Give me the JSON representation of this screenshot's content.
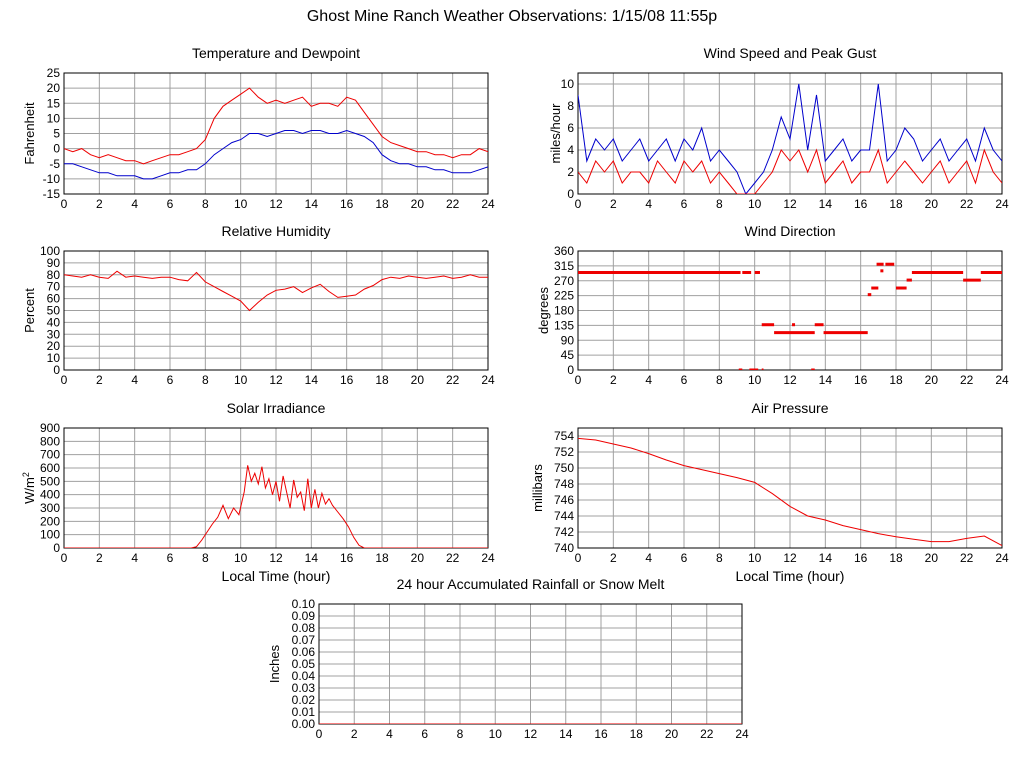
{
  "page": {
    "title": "Ghost Mine Ranch Weather Observations: 1/15/08 11:55p"
  },
  "colors": {
    "red": "#ee0000",
    "blue": "#0000cc",
    "grid": "#a0a0a0",
    "frame": "#000000"
  },
  "chart_data": [
    {
      "id": "temp",
      "type": "line",
      "title": "Temperature and Dewpoint",
      "xlabel": "",
      "ylabel": "Fahrenheit",
      "xlim": [
        0,
        24
      ],
      "ylim": [
        -15,
        25
      ],
      "xticks": [
        0,
        2,
        4,
        6,
        8,
        10,
        12,
        14,
        16,
        18,
        20,
        22,
        24
      ],
      "yticks": [
        -15,
        -10,
        -5,
        0,
        5,
        10,
        15,
        20,
        25
      ],
      "grid": true,
      "series": [
        {
          "color": "red",
          "x": [
            0,
            0.5,
            1,
            1.5,
            2,
            2.5,
            3,
            3.5,
            4,
            4.5,
            5,
            5.5,
            6,
            6.5,
            7,
            7.5,
            8,
            8.5,
            9,
            9.5,
            10,
            10.5,
            11,
            11.5,
            12,
            12.5,
            13,
            13.5,
            14,
            14.5,
            15,
            15.5,
            16,
            16.5,
            17,
            17.5,
            18,
            18.5,
            19,
            19.5,
            20,
            20.5,
            21,
            21.5,
            22,
            22.5,
            23,
            23.5,
            24
          ],
          "values": [
            0,
            -1,
            0,
            -2,
            -3,
            -2,
            -3,
            -4,
            -4,
            -5,
            -4,
            -3,
            -2,
            -2,
            -1,
            0,
            3,
            10,
            14,
            16,
            18,
            20,
            17,
            15,
            16,
            15,
            16,
            17,
            14,
            15,
            15,
            14,
            17,
            16,
            12,
            8,
            4,
            2,
            1,
            0,
            -1,
            -1,
            -2,
            -2,
            -3,
            -2,
            -2,
            0,
            -1
          ]
        },
        {
          "color": "blue",
          "x": [
            0,
            0.5,
            1,
            1.5,
            2,
            2.5,
            3,
            3.5,
            4,
            4.5,
            5,
            5.5,
            6,
            6.5,
            7,
            7.5,
            8,
            8.5,
            9,
            9.5,
            10,
            10.5,
            11,
            11.5,
            12,
            12.5,
            13,
            13.5,
            14,
            14.5,
            15,
            15.5,
            16,
            16.5,
            17,
            17.5,
            18,
            18.5,
            19,
            19.5,
            20,
            20.5,
            21,
            21.5,
            22,
            22.5,
            23,
            23.5,
            24
          ],
          "values": [
            -5,
            -5,
            -6,
            -7,
            -8,
            -8,
            -9,
            -9,
            -9,
            -10,
            -10,
            -9,
            -8,
            -8,
            -7,
            -7,
            -5,
            -2,
            0,
            2,
            3,
            5,
            5,
            4,
            5,
            6,
            6,
            5,
            6,
            6,
            5,
            5,
            6,
            5,
            4,
            2,
            -2,
            -4,
            -5,
            -5,
            -6,
            -6,
            -7,
            -7,
            -8,
            -8,
            -8,
            -7,
            -6
          ]
        }
      ]
    },
    {
      "id": "wind",
      "type": "line",
      "title": "Wind Speed and Peak Gust",
      "xlabel": "",
      "ylabel": "miles/hour",
      "xlim": [
        0,
        24
      ],
      "ylim": [
        0,
        11
      ],
      "xticks": [
        0,
        2,
        4,
        6,
        8,
        10,
        12,
        14,
        16,
        18,
        20,
        22,
        24
      ],
      "yticks": [
        0,
        2,
        4,
        6,
        8,
        10
      ],
      "grid": true,
      "series": [
        {
          "color": "blue",
          "x": [
            0,
            0.5,
            1,
            1.5,
            2,
            2.5,
            3,
            3.5,
            4,
            4.5,
            5,
            5.5,
            6,
            6.5,
            7,
            7.5,
            8,
            8.5,
            9,
            9.5,
            10,
            10.5,
            11,
            11.5,
            12,
            12.5,
            13,
            13.5,
            14,
            14.5,
            15,
            15.5,
            16,
            16.5,
            17,
            17.5,
            18,
            18.5,
            19,
            19.5,
            20,
            20.5,
            21,
            21.5,
            22,
            22.5,
            23,
            23.5,
            24
          ],
          "values": [
            9,
            3,
            5,
            4,
            5,
            3,
            4,
            5,
            3,
            4,
            5,
            3,
            5,
            4,
            6,
            3,
            4,
            3,
            2,
            0,
            1,
            2,
            4,
            7,
            5,
            10,
            4,
            9,
            3,
            4,
            5,
            3,
            4,
            4,
            10,
            3,
            4,
            6,
            5,
            3,
            4,
            5,
            3,
            4,
            5,
            3,
            6,
            4,
            3
          ]
        },
        {
          "color": "red",
          "x": [
            0,
            0.5,
            1,
            1.5,
            2,
            2.5,
            3,
            3.5,
            4,
            4.5,
            5,
            5.5,
            6,
            6.5,
            7,
            7.5,
            8,
            8.5,
            9,
            9.5,
            10,
            10.5,
            11,
            11.5,
            12,
            12.5,
            13,
            13.5,
            14,
            14.5,
            15,
            15.5,
            16,
            16.5,
            17,
            17.5,
            18,
            18.5,
            19,
            19.5,
            20,
            20.5,
            21,
            21.5,
            22,
            22.5,
            23,
            23.5,
            24
          ],
          "values": [
            2,
            1,
            3,
            2,
            3,
            1,
            2,
            2,
            1,
            3,
            2,
            1,
            3,
            2,
            3,
            1,
            2,
            1,
            0,
            0,
            0,
            1,
            2,
            4,
            3,
            4,
            2,
            4,
            1,
            2,
            3,
            1,
            2,
            2,
            4,
            1,
            2,
            3,
            2,
            1,
            2,
            3,
            1,
            2,
            3,
            1,
            4,
            2,
            1
          ]
        }
      ]
    },
    {
      "id": "rh",
      "type": "line",
      "title": "Relative Humidity",
      "xlabel": "",
      "ylabel": "Percent",
      "xlim": [
        0,
        24
      ],
      "ylim": [
        0,
        100
      ],
      "xticks": [
        0,
        2,
        4,
        6,
        8,
        10,
        12,
        14,
        16,
        18,
        20,
        22,
        24
      ],
      "yticks": [
        0,
        10,
        20,
        30,
        40,
        50,
        60,
        70,
        80,
        90,
        100
      ],
      "grid": true,
      "series": [
        {
          "color": "red",
          "x": [
            0,
            0.5,
            1,
            1.5,
            2,
            2.5,
            3,
            3.5,
            4,
            4.5,
            5,
            5.5,
            6,
            6.5,
            7,
            7.5,
            8,
            8.5,
            9,
            9.5,
            10,
            10.5,
            11,
            11.5,
            12,
            12.5,
            13,
            13.5,
            14,
            14.5,
            15,
            15.5,
            16,
            16.5,
            17,
            17.5,
            18,
            18.5,
            19,
            19.5,
            20,
            20.5,
            21,
            21.5,
            22,
            22.5,
            23,
            23.5,
            24
          ],
          "values": [
            80,
            79,
            78,
            80,
            78,
            77,
            83,
            78,
            79,
            78,
            77,
            78,
            78,
            76,
            75,
            82,
            74,
            70,
            66,
            62,
            58,
            50,
            57,
            63,
            67,
            68,
            70,
            65,
            69,
            72,
            66,
            61,
            62,
            63,
            68,
            71,
            76,
            78,
            77,
            79,
            78,
            77,
            78,
            79,
            77,
            78,
            80,
            78,
            78
          ]
        }
      ]
    },
    {
      "id": "wdir",
      "type": "scatter",
      "title": "Wind Direction",
      "xlabel": "",
      "ylabel": "degrees",
      "xlim": [
        0,
        24
      ],
      "ylim": [
        0,
        360
      ],
      "xticks": [
        0,
        2,
        4,
        6,
        8,
        10,
        12,
        14,
        16,
        18,
        20,
        22,
        24
      ],
      "yticks": [
        0,
        45,
        90,
        135,
        180,
        225,
        270,
        315,
        360
      ],
      "grid": true,
      "segments": [
        {
          "x0": 0,
          "x1": 9.2,
          "y": 295
        },
        {
          "x0": 9.3,
          "x1": 9.8,
          "y": 295
        },
        {
          "x0": 10.0,
          "x1": 10.3,
          "y": 295
        },
        {
          "x0": 9.1,
          "x1": 9.3,
          "y": 0
        },
        {
          "x0": 9.7,
          "x1": 10.2,
          "y": 0
        },
        {
          "x0": 10.4,
          "x1": 10.5,
          "y": 0
        },
        {
          "x0": 10.4,
          "x1": 11.1,
          "y": 137
        },
        {
          "x0": 11.1,
          "x1": 13.4,
          "y": 113
        },
        {
          "x0": 13.4,
          "x1": 13.9,
          "y": 137
        },
        {
          "x0": 13.9,
          "x1": 16.4,
          "y": 113
        },
        {
          "x0": 13.2,
          "x1": 13.4,
          "y": 0
        },
        {
          "x0": 16.4,
          "x1": 16.6,
          "y": 228
        },
        {
          "x0": 16.6,
          "x1": 17.0,
          "y": 248
        },
        {
          "x0": 16.9,
          "x1": 17.3,
          "y": 320
        },
        {
          "x0": 17.4,
          "x1": 17.9,
          "y": 320
        },
        {
          "x0": 18.0,
          "x1": 18.6,
          "y": 248
        },
        {
          "x0": 18.6,
          "x1": 18.9,
          "y": 272
        },
        {
          "x0": 18.9,
          "x1": 21.8,
          "y": 295
        },
        {
          "x0": 21.8,
          "x1": 22.8,
          "y": 272
        },
        {
          "x0": 22.8,
          "x1": 24,
          "y": 295
        }
      ],
      "points": [
        {
          "x": 12.2,
          "y": 137
        },
        {
          "x": 17.2,
          "y": 300
        }
      ]
    },
    {
      "id": "solar",
      "type": "line",
      "title": "Solar Irradiance",
      "xlabel": "Local Time (hour)",
      "ylabel": "W/m2",
      "xlim": [
        0,
        24
      ],
      "ylim": [
        0,
        900
      ],
      "xticks": [
        0,
        2,
        4,
        6,
        8,
        10,
        12,
        14,
        16,
        18,
        20,
        22,
        24
      ],
      "yticks": [
        0,
        100,
        200,
        300,
        400,
        500,
        600,
        700,
        800,
        900
      ],
      "grid": true,
      "series": [
        {
          "color": "red",
          "x": [
            0,
            7.2,
            7.5,
            7.8,
            8.1,
            8.4,
            8.7,
            9.0,
            9.3,
            9.6,
            9.9,
            10.2,
            10.4,
            10.6,
            10.8,
            11.0,
            11.2,
            11.4,
            11.6,
            11.8,
            12.0,
            12.2,
            12.4,
            12.6,
            12.8,
            13.0,
            13.2,
            13.4,
            13.6,
            13.8,
            14.0,
            14.2,
            14.4,
            14.6,
            14.8,
            15.0,
            15.2,
            15.5,
            15.8,
            16.1,
            16.4,
            16.7,
            17.0,
            24
          ],
          "values": [
            0,
            0,
            10,
            60,
            120,
            180,
            230,
            320,
            220,
            300,
            250,
            420,
            620,
            500,
            560,
            480,
            610,
            450,
            520,
            400,
            500,
            350,
            540,
            420,
            300,
            510,
            380,
            420,
            280,
            520,
            300,
            440,
            300,
            410,
            330,
            370,
            320,
            270,
            220,
            160,
            80,
            20,
            0,
            0
          ]
        }
      ]
    },
    {
      "id": "pressure",
      "type": "line",
      "title": "Air Pressure",
      "xlabel": "Local Time (hour)",
      "ylabel": "millibars",
      "xlim": [
        0,
        24
      ],
      "ylim": [
        740,
        755
      ],
      "xticks": [
        0,
        2,
        4,
        6,
        8,
        10,
        12,
        14,
        16,
        18,
        20,
        22,
        24
      ],
      "yticks": [
        740,
        742,
        744,
        746,
        748,
        750,
        752,
        754
      ],
      "grid": true,
      "series": [
        {
          "color": "red",
          "x": [
            0,
            1,
            2,
            3,
            4,
            5,
            6,
            7,
            8,
            9,
            10,
            11,
            12,
            13,
            14,
            15,
            16,
            17,
            18,
            19,
            20,
            21,
            22,
            23,
            24
          ],
          "values": [
            753.7,
            753.5,
            753,
            752.5,
            751.8,
            751,
            750.3,
            749.8,
            749.3,
            748.8,
            748.2,
            746.8,
            745.2,
            744,
            743.5,
            742.8,
            742.3,
            741.8,
            741.4,
            741.1,
            740.8,
            740.8,
            741.2,
            741.5,
            740.3
          ]
        }
      ]
    },
    {
      "id": "rain",
      "type": "line",
      "title": "24 hour Accumulated Rainfall or Snow Melt",
      "xlabel": "",
      "ylabel": "Inches",
      "xlim": [
        0,
        24
      ],
      "ylim": [
        0,
        0.1
      ],
      "xticks": [
        0,
        2,
        4,
        6,
        8,
        10,
        12,
        14,
        16,
        18,
        20,
        22,
        24
      ],
      "yticks": [
        "0.00",
        "0.01",
        "0.02",
        "0.03",
        "0.04",
        "0.05",
        "0.06",
        "0.07",
        "0.08",
        "0.09",
        "0.10"
      ],
      "grid": true,
      "series": [
        {
          "color": "red",
          "x": [
            0,
            24
          ],
          "values": [
            0,
            0
          ]
        }
      ]
    }
  ]
}
